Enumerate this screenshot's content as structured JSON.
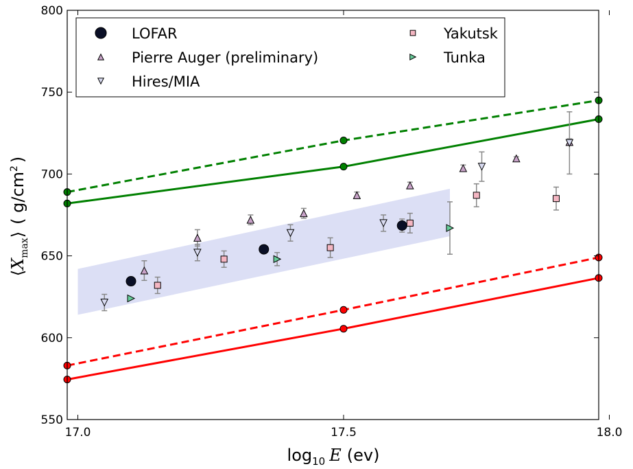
{
  "chart_data": {
    "type": "scatter",
    "xlabel_main": "log",
    "xlabel_sub": "10",
    "xlabel_var": "E",
    "xlabel_unit": "(ev)",
    "ylabel_var": "X",
    "ylabel_sub": "max",
    "ylabel_unit": "( g/cm",
    "ylabel_sup": "2",
    "ylabel_close": ")",
    "xlim": [
      16.98,
      17.98
    ],
    "ylim": [
      550,
      800
    ],
    "x_ticks": [
      17.0,
      17.5,
      18.0
    ],
    "x_tick_labels": [
      "17.0",
      "17.5",
      "18.0"
    ],
    "y_ticks": [
      550,
      600,
      650,
      700,
      750,
      800
    ],
    "y_tick_labels": [
      "550",
      "600",
      "650",
      "700",
      "750",
      "800"
    ],
    "legend_position": "upper-left",
    "colors": {
      "lofar": "#0a0f26",
      "auger": "#c8a2c8",
      "hires": "#d8daf0",
      "yakutsk": "#f4b6c2",
      "tunka": "#66cc99",
      "proton": "#ff0000",
      "iron": "#008000",
      "band": "#dcdff5",
      "errorbar": "#888888"
    },
    "band": {
      "x": [
        17.0,
        17.7
      ],
      "lower": [
        614,
        662
      ],
      "upper": [
        642,
        691
      ]
    },
    "series": [
      {
        "name": "LOFAR",
        "marker": "circle",
        "color_key": "lofar",
        "points": [
          {
            "x": 17.1,
            "y": 634.5,
            "err": 1
          },
          {
            "x": 17.35,
            "y": 654,
            "err": 2
          },
          {
            "x": 17.61,
            "y": 668.5,
            "err": 4
          }
        ]
      },
      {
        "name": "Pierre Auger (preliminary)",
        "marker": "triangle-up",
        "color_key": "auger",
        "points": [
          {
            "x": 17.125,
            "y": 641,
            "err": 6
          },
          {
            "x": 17.225,
            "y": 661,
            "err": 5
          },
          {
            "x": 17.325,
            "y": 672,
            "err": 3
          },
          {
            "x": 17.425,
            "y": 676,
            "err": 3
          },
          {
            "x": 17.525,
            "y": 687,
            "err": 2
          },
          {
            "x": 17.625,
            "y": 693,
            "err": 2
          },
          {
            "x": 17.725,
            "y": 703.5,
            "err": 2
          },
          {
            "x": 17.825,
            "y": 709.5,
            "err": 1
          },
          {
            "x": 17.925,
            "y": 719.5,
            "err": 2
          }
        ]
      },
      {
        "name": "Hires/MIA",
        "marker": "triangle-down",
        "color_key": "hires",
        "points": [
          {
            "x": 17.05,
            "y": 621.5,
            "err": 5
          },
          {
            "x": 17.225,
            "y": 652,
            "err": 5
          },
          {
            "x": 17.4,
            "y": 664,
            "err": 5
          },
          {
            "x": 17.575,
            "y": 670,
            "err": 5
          },
          {
            "x": 17.76,
            "y": 704.5,
            "err": 9
          },
          {
            "x": 17.925,
            "y": 719,
            "err": 19
          }
        ]
      },
      {
        "name": "Yakutsk",
        "marker": "square",
        "color_key": "yakutsk",
        "points": [
          {
            "x": 17.15,
            "y": 632,
            "err": 5
          },
          {
            "x": 17.275,
            "y": 648,
            "err": 5
          },
          {
            "x": 17.475,
            "y": 655,
            "err": 6
          },
          {
            "x": 17.625,
            "y": 670,
            "err": 6
          },
          {
            "x": 17.75,
            "y": 687,
            "err": 7
          },
          {
            "x": 17.9,
            "y": 685,
            "err": 7
          }
        ]
      },
      {
        "name": "Tunka",
        "marker": "triangle-right",
        "color_key": "tunka",
        "points": [
          {
            "x": 17.1,
            "y": 624,
            "err": 0
          },
          {
            "x": 17.375,
            "y": 648,
            "err": 4
          },
          {
            "x": 17.7,
            "y": 667,
            "err": 16
          }
        ]
      }
    ],
    "model_lines": [
      {
        "color_key": "iron",
        "style": "dashed",
        "x": [
          16.98,
          17.5,
          17.98
        ],
        "y": [
          689,
          720.5,
          745
        ]
      },
      {
        "color_key": "iron",
        "style": "solid",
        "x": [
          16.98,
          17.5,
          17.98
        ],
        "y": [
          682,
          704.5,
          733.5
        ]
      },
      {
        "color_key": "proton",
        "style": "dashed",
        "x": [
          16.98,
          17.5,
          17.98
        ],
        "y": [
          583,
          617,
          649
        ]
      },
      {
        "color_key": "proton",
        "style": "solid",
        "x": [
          16.98,
          17.5,
          17.98
        ],
        "y": [
          574.5,
          605.5,
          636.5
        ]
      }
    ],
    "legend": [
      {
        "label": "LOFAR",
        "series": 0
      },
      {
        "label": "Pierre Auger (preliminary)",
        "series": 1
      },
      {
        "label": "Hires/MIA",
        "series": 2
      },
      {
        "label": "Yakutsk",
        "series": 3
      },
      {
        "label": "Tunka",
        "series": 4
      }
    ]
  }
}
